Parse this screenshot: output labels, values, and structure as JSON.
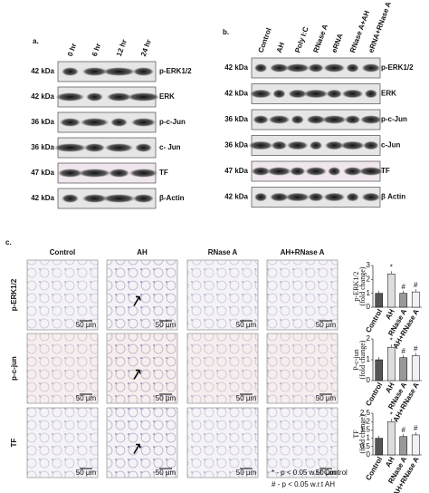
{
  "panel_a": {
    "label": "a.",
    "lanes": [
      "0 hr",
      "6 hr",
      "12 hr",
      "24 hr"
    ],
    "rows": [
      {
        "kda": "42 kDa",
        "protein": "p-ERK1/2"
      },
      {
        "kda": "42 kDa",
        "protein": "ERK"
      },
      {
        "kda": "36 kDa",
        "protein": "p-c-Jun"
      },
      {
        "kda": "36 kDa",
        "protein": "c- Jun"
      },
      {
        "kda": "47 kDa",
        "protein": "TF"
      },
      {
        "kda": "42 kDa",
        "protein": "β-Actin"
      }
    ]
  },
  "panel_b": {
    "label": "b.",
    "lanes": [
      "Control",
      "AH",
      "Poly I:C",
      "RNase A",
      "eRNA",
      "RNase A+AH",
      "eRNA+RNase A"
    ],
    "rows": [
      {
        "kda": "42 kDa",
        "protein": "p-ERK1/2"
      },
      {
        "kda": "42 kDa",
        "protein": "ERK"
      },
      {
        "kda": "36 kDa",
        "protein": "p-c-Jun"
      },
      {
        "kda": "36 kDa",
        "protein": "c-Jun"
      },
      {
        "kda": "47 kDa",
        "protein": "TF"
      },
      {
        "kda": "42 kDa",
        "protein": "β Actin"
      }
    ]
  },
  "panel_c": {
    "label": "c.",
    "columns": [
      "Control",
      "AH",
      "RNase A",
      "AH+RNase A"
    ],
    "rows": [
      "p-ERK1/2",
      "p-c-jun",
      "TF"
    ],
    "scale_bar": "50 µm",
    "footnotes": [
      "* - p < 0.05 w.r.t Control",
      "# - p < 0.05 w.r.t AH"
    ]
  },
  "chart_data": [
    {
      "type": "bar",
      "y_label": [
        "p-ERK1/2",
        "(fold change)"
      ],
      "categories": [
        "Control",
        "AH",
        "RNase A",
        "AH+RNase A"
      ],
      "values": [
        1,
        2.4,
        1.0,
        1.1
      ],
      "colors": [
        "#555555",
        "#dddddd",
        "#999999",
        "#f2f2f2"
      ],
      "ylim": [
        0,
        3
      ],
      "yticks": [
        0,
        1,
        2,
        3
      ],
      "annotations": [
        {
          "category": "AH",
          "text": "*"
        },
        {
          "category": "RNase A",
          "text": "#"
        },
        {
          "category": "AH+RNase A",
          "text": "#"
        }
      ]
    },
    {
      "type": "bar",
      "y_label": [
        "P-c-jun",
        "(fold change)"
      ],
      "categories": [
        "Control",
        "AH",
        "RNase A",
        "AH+RNase A"
      ],
      "values": [
        1,
        1.6,
        1.1,
        1.2
      ],
      "colors": [
        "#555555",
        "#dddddd",
        "#999999",
        "#f2f2f2"
      ],
      "ylim": [
        0,
        2
      ],
      "yticks": [
        0,
        1,
        2
      ],
      "annotations": [
        {
          "category": "AH",
          "text": "*"
        },
        {
          "category": "RNase A",
          "text": "#"
        },
        {
          "category": "AH+RNase A",
          "text": "#"
        }
      ]
    },
    {
      "type": "bar",
      "y_label": [
        "TF",
        "(fold change)"
      ],
      "categories": [
        "Control",
        "AH",
        "RNase A",
        "AH+RNase A"
      ],
      "values": [
        1,
        2.0,
        1.1,
        1.2
      ],
      "colors": [
        "#555555",
        "#dddddd",
        "#999999",
        "#f2f2f2"
      ],
      "ylim": [
        0,
        2.5
      ],
      "yticks": [
        0,
        0.5,
        1,
        1.5,
        2,
        2.5
      ],
      "annotations": [
        {
          "category": "AH",
          "text": "*"
        },
        {
          "category": "RNase A",
          "text": "#"
        },
        {
          "category": "AH+RNase A",
          "text": "#"
        }
      ]
    }
  ]
}
